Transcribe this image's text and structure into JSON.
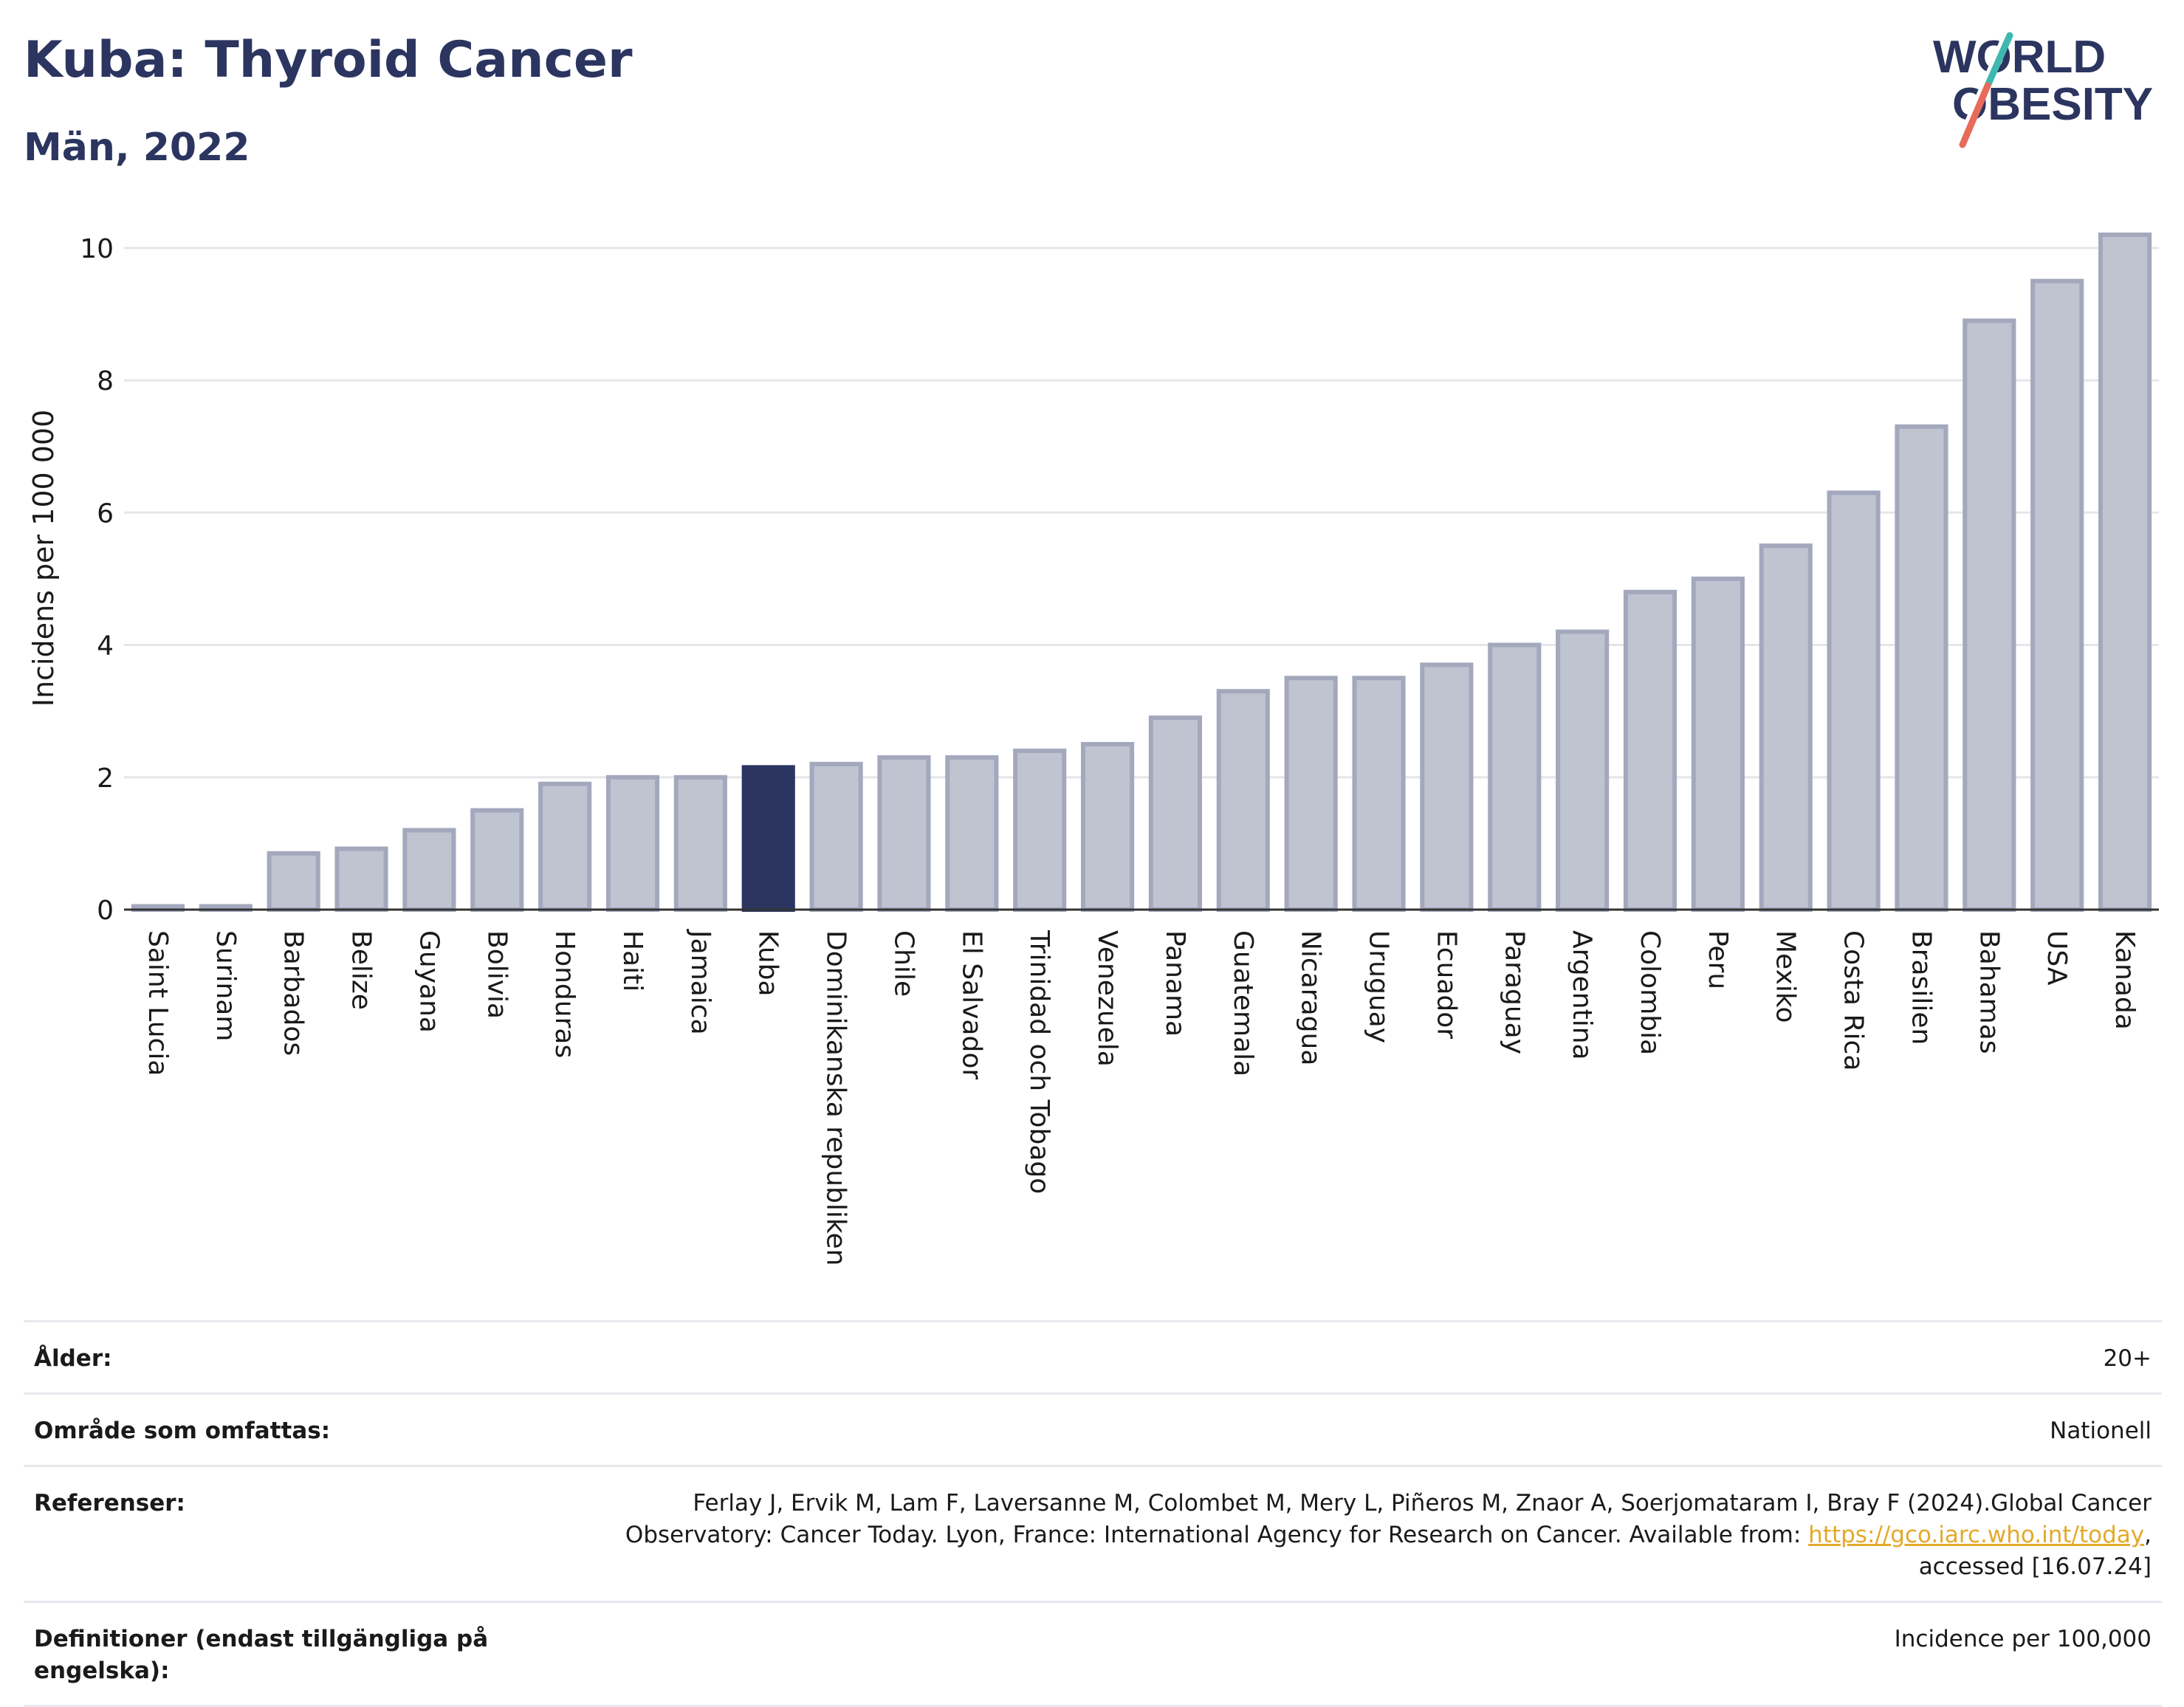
{
  "header": {
    "title": "Kuba: Thyroid Cancer",
    "subtitle": "Män, 2022"
  },
  "logo": {
    "line1": "WORLD",
    "line2": "OBESITY"
  },
  "colors": {
    "highlight": "#2b3560",
    "bar_fill": "#c0c3d0",
    "bar_stroke": "#a4a8bd",
    "grid": "#e6e6ea",
    "text": "#2b3560",
    "link": "#e3a92a"
  },
  "chart_data": {
    "type": "bar",
    "ylabel": "Incidens per 100 000",
    "ylim": [
      0,
      10.4
    ],
    "yticks": [
      0,
      2,
      4,
      6,
      8,
      10
    ],
    "grid": true,
    "highlight": "Kuba",
    "categories": [
      "Saint Lucia",
      "Surinam",
      "Barbados",
      "Belize",
      "Guyana",
      "Bolivia",
      "Honduras",
      "Haiti",
      "Jamaica",
      "Kuba",
      "Dominikanska republiken",
      "Chile",
      "El Salvador",
      "Trinidad och Tobago",
      "Venezuela",
      "Panama",
      "Guatemala",
      "Nicaragua",
      "Uruguay",
      "Ecuador",
      "Paraguay",
      "Argentina",
      "Colombia",
      "Peru",
      "Mexiko",
      "Costa Rica",
      "Brasilien",
      "Bahamas",
      "USA",
      "Kanada"
    ],
    "values": [
      0.05,
      0.05,
      0.85,
      0.92,
      1.2,
      1.5,
      1.9,
      2.0,
      2.0,
      2.15,
      2.2,
      2.3,
      2.3,
      2.4,
      2.5,
      2.9,
      3.3,
      3.5,
      3.5,
      3.7,
      4.0,
      4.2,
      4.8,
      5.0,
      5.5,
      6.3,
      7.3,
      8.9,
      9.5,
      10.2
    ]
  },
  "info": {
    "rows": [
      {
        "label": "Ålder:",
        "value": "20+"
      },
      {
        "label": "Område som omfattas:",
        "value": "Nationell"
      },
      {
        "label": "Definitioner (endast tillgängliga på engelska):",
        "value": "Incidence per 100,000"
      }
    ],
    "references": {
      "label": "Referenser:",
      "text_before": "Ferlay J, Ervik M, Lam F, Laversanne M, Colombet M, Mery L, Piñeros M, Znaor A, Soerjomataram I, Bray F (2024).Global Cancer Observatory: Cancer Today. Lyon, France: International Agency for Research on Cancer. Available from: ",
      "link": "https://gco.iarc.who.int/today",
      "text_after": ", accessed [16.07.24]"
    }
  }
}
